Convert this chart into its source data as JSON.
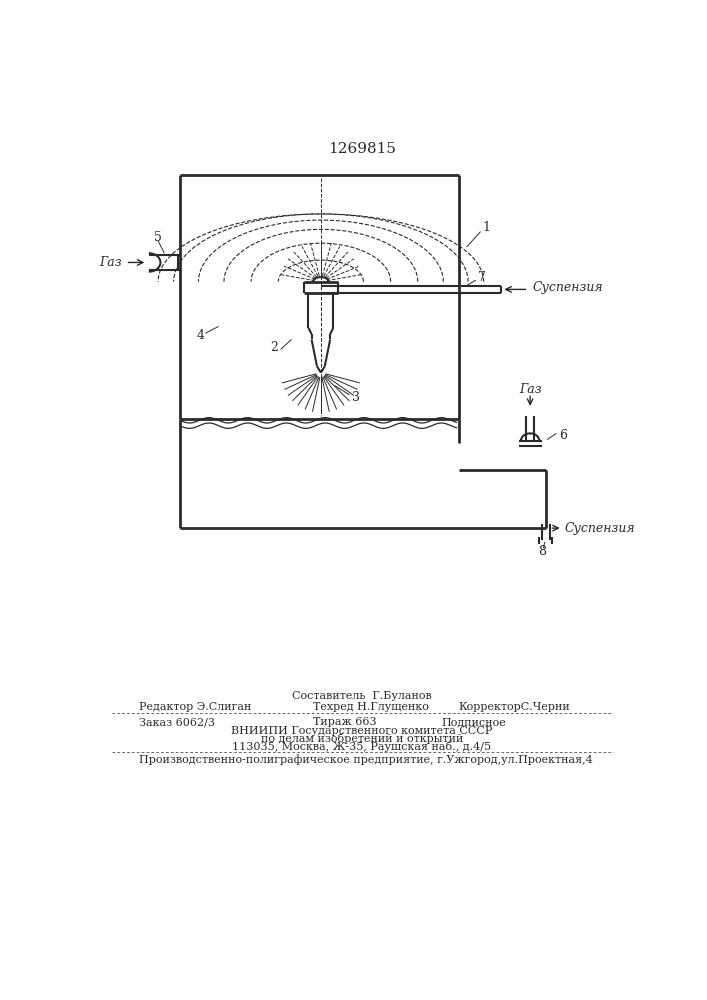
{
  "title": "1269815",
  "bg_color": "#ffffff",
  "line_color": "#2a2a2a",
  "label_1": "1",
  "label_2": "2",
  "label_3": "3",
  "label_4": "4",
  "label_5": "5",
  "label_6": "6",
  "label_7": "7",
  "label_8": "8",
  "text_gaz_top": "Газ",
  "text_suspension_top": "Суспензия",
  "text_gaz_right": "Газ",
  "text_suspension_bottom": "Суспензия",
  "footer_line0_center": "Составитель  Г.Буланов",
  "footer_line1_left": "Редактор Э.Слиган",
  "footer_line1_center": "Техред Н.Глущенко",
  "footer_line1_right": "КорректорС.Черни",
  "footer_line2_left": "Заказ 6062/3",
  "footer_line2_center": "Тираж 663",
  "footer_line2_right": "Подписное",
  "footer_line3": "ВНИИПИ Государственного комитета СССР",
  "footer_line4": "по делам изобретений и открытий",
  "footer_line5": "113035, Москва, Ж-35, Раушская наб., д.4/5",
  "footer_last": "Производственно-полиграфическое предприятие, г.Ужгород,ул.Проектная,4"
}
